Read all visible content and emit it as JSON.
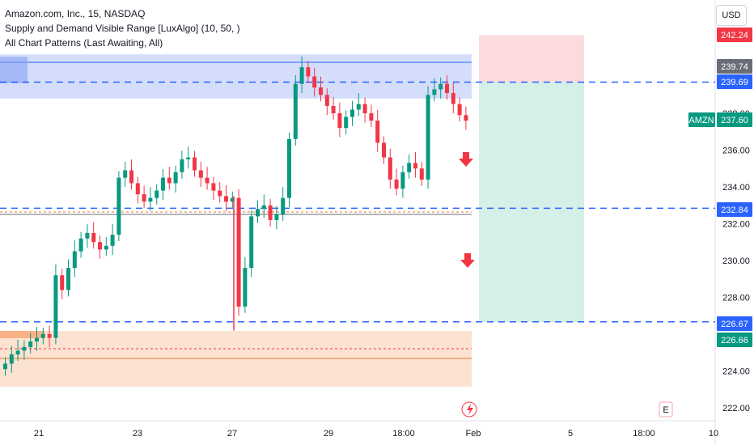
{
  "legend": {
    "title": "Amazon.com, Inc., 15, NASDAQ",
    "indicator1": "Supply and Demand Visible Range [LuxAlgo] (10, 50, )",
    "indicator2": "All Chart Patterns (Last Awaiting, All)"
  },
  "currency_button": "USD",
  "ticker": "AMZN",
  "colors": {
    "up": "#089981",
    "down": "#f23645",
    "level_line": "#2962ff",
    "supply_zone": "#c5d3fa",
    "demand_zone": "#fbd9c1",
    "target_zone": "#cfeee5",
    "stop_zone": "#fbd5d8",
    "badge_blue": "#2962ff",
    "badge_green": "#089981",
    "badge_red": "#f23645",
    "badge_gray": "#6a6d78"
  },
  "price_badges": {
    "stop": "242.24",
    "supply_top": "239.74",
    "entry_level": "239.69",
    "current": "237.60",
    "mid_level": "232.84",
    "low_level": "226.67",
    "target": "226.66"
  },
  "chart_data": {
    "type": "candlestick",
    "y_ticks": [
      "238.00",
      "236.00",
      "234.00",
      "232.00",
      "230.00",
      "228.00",
      "224.00",
      "222.00"
    ],
    "x_ticks": [
      "21",
      "23",
      "27",
      "29",
      "18:00",
      "Feb",
      "5",
      "18:00",
      "10"
    ],
    "ylim": [
      222,
      243.5
    ],
    "levels": [
      239.69,
      232.84,
      226.67
    ],
    "supply_zone": [
      238.8,
      241.2
    ],
    "demand_zone": [
      224.0,
      226.0
    ],
    "position": {
      "entry": 239.69,
      "stop": 242.24,
      "target": 226.66
    },
    "series_close": [
      224.4,
      224.9,
      225.1,
      225.3,
      225.6,
      225.8,
      226.0,
      225.8,
      229.2,
      228.4,
      229.6,
      230.5,
      231.2,
      231.5,
      231.0,
      230.6,
      230.8,
      231.4,
      234.5,
      234.9,
      234.2,
      233.6,
      233.2,
      233.4,
      233.8,
      234.5,
      234.2,
      234.8,
      235.5,
      235.6,
      234.9,
      234.5,
      234.2,
      233.8,
      233.5,
      233.2,
      233.4,
      227.5,
      229.6,
      232.4,
      232.8,
      233.0,
      232.2,
      232.5,
      233.4,
      236.6,
      239.6,
      240.5,
      240.0,
      239.4,
      239.0,
      238.4,
      238.0,
      237.2,
      237.8,
      238.2,
      238.5,
      238.0,
      237.6,
      236.4,
      235.6,
      234.4,
      233.9,
      234.8,
      235.3,
      235.0,
      234.4,
      239.0,
      239.3,
      239.6,
      239.1,
      238.5,
      237.9,
      237.6
    ],
    "markers": [
      "down-arrow",
      "down-arrow"
    ]
  }
}
